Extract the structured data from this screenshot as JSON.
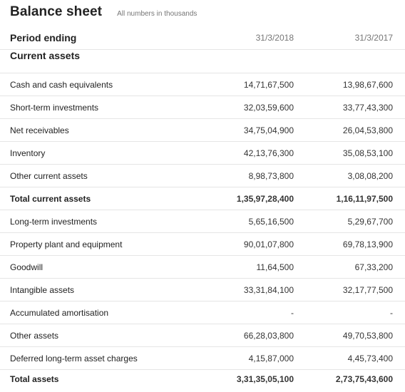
{
  "header": {
    "title": "Balance sheet",
    "subtitle": "All numbers in thousands"
  },
  "table": {
    "period_label": "Period ending",
    "periods": [
      "31/3/2018",
      "31/3/2017"
    ],
    "section_label": "Current assets",
    "rows": [
      {
        "label": "Cash and cash equivalents",
        "v2018": "14,71,67,500",
        "v2017": "13,98,67,600",
        "bold": false
      },
      {
        "label": "Short-term investments",
        "v2018": "32,03,59,600",
        "v2017": "33,77,43,300",
        "bold": false
      },
      {
        "label": "Net receivables",
        "v2018": "34,75,04,900",
        "v2017": "26,04,53,800",
        "bold": false
      },
      {
        "label": "Inventory",
        "v2018": "42,13,76,300",
        "v2017": "35,08,53,100",
        "bold": false
      },
      {
        "label": "Other current assets",
        "v2018": "8,98,73,800",
        "v2017": "3,08,08,200",
        "bold": false
      },
      {
        "label": "Total current assets",
        "v2018": "1,35,97,28,400",
        "v2017": "1,16,11,97,500",
        "bold": true
      },
      {
        "label": "Long-term investments",
        "v2018": "5,65,16,500",
        "v2017": "5,29,67,700",
        "bold": false
      },
      {
        "label": "Property plant and equipment",
        "v2018": "90,01,07,800",
        "v2017": "69,78,13,900",
        "bold": false
      },
      {
        "label": "Goodwill",
        "v2018": "11,64,500",
        "v2017": "67,33,200",
        "bold": false
      },
      {
        "label": "Intangible assets",
        "v2018": "33,31,84,100",
        "v2017": "32,17,77,500",
        "bold": false
      },
      {
        "label": "Accumulated amortisation",
        "v2018": "-",
        "v2017": "-",
        "bold": false
      },
      {
        "label": "Other assets",
        "v2018": "66,28,03,800",
        "v2017": "49,70,53,800",
        "bold": false
      },
      {
        "label": "Deferred long-term asset charges",
        "v2018": "4,15,87,000",
        "v2017": "4,45,73,400",
        "bold": false
      },
      {
        "label": "Total assets",
        "v2018": "3,31,35,05,100",
        "v2017": "2,73,75,43,600",
        "bold": true
      }
    ]
  }
}
